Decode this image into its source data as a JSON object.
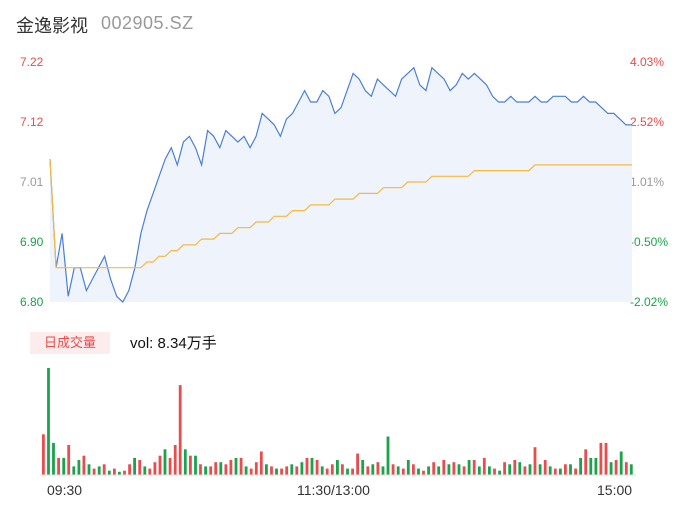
{
  "header": {
    "name": "金逸影视",
    "code": "002905.SZ"
  },
  "colors": {
    "price_line": "#4a7fd6",
    "avg_line": "#f5b942",
    "fill": "#eef3fc",
    "up": "#e84c4c",
    "down": "#1aa34a",
    "flat": "#999999"
  },
  "chart_data": [
    {
      "type": "line",
      "subject": "intraday price",
      "prev_close": 7.01,
      "y_ticks": [
        "7.22",
        "7.12",
        "7.01",
        "6.90",
        "6.80"
      ],
      "pct_ticks": [
        "4.03%",
        "2.52%",
        "1.01%",
        "-0.50%",
        "-2.02%"
      ],
      "ylim": [
        6.8,
        7.22
      ],
      "x_ticks": [
        "09:30",
        "11:30/13:00",
        "15:00"
      ],
      "series": [
        {
          "role": "price",
          "values": [
            7.05,
            6.86,
            6.92,
            6.81,
            6.86,
            6.86,
            6.82,
            6.84,
            6.86,
            6.88,
            6.84,
            6.81,
            6.8,
            6.82,
            6.86,
            6.92,
            6.96,
            6.99,
            7.02,
            7.05,
            7.07,
            7.04,
            7.08,
            7.09,
            7.07,
            7.04,
            7.1,
            7.09,
            7.07,
            7.1,
            7.09,
            7.08,
            7.09,
            7.07,
            7.09,
            7.13,
            7.12,
            7.11,
            7.09,
            7.12,
            7.13,
            7.15,
            7.17,
            7.15,
            7.15,
            7.17,
            7.16,
            7.13,
            7.14,
            7.17,
            7.2,
            7.19,
            7.17,
            7.16,
            7.19,
            7.18,
            7.17,
            7.16,
            7.19,
            7.2,
            7.21,
            7.18,
            7.17,
            7.21,
            7.2,
            7.19,
            7.17,
            7.18,
            7.2,
            7.19,
            7.2,
            7.19,
            7.18,
            7.16,
            7.15,
            7.15,
            7.16,
            7.15,
            7.15,
            7.15,
            7.16,
            7.15,
            7.15,
            7.16,
            7.16,
            7.16,
            7.15,
            7.15,
            7.16,
            7.15,
            7.15,
            7.14,
            7.13,
            7.13,
            7.12,
            7.11,
            7.11
          ]
        },
        {
          "role": "average",
          "values": [
            7.05,
            6.86,
            6.86,
            6.86,
            6.86,
            6.86,
            6.86,
            6.86,
            6.86,
            6.86,
            6.86,
            6.86,
            6.86,
            6.86,
            6.86,
            6.86,
            6.87,
            6.87,
            6.88,
            6.88,
            6.89,
            6.89,
            6.9,
            6.9,
            6.9,
            6.91,
            6.91,
            6.91,
            6.92,
            6.92,
            6.92,
            6.93,
            6.93,
            6.93,
            6.94,
            6.94,
            6.94,
            6.95,
            6.95,
            6.95,
            6.96,
            6.96,
            6.96,
            6.97,
            6.97,
            6.97,
            6.97,
            6.98,
            6.98,
            6.98,
            6.98,
            6.99,
            6.99,
            6.99,
            6.99,
            7.0,
            7.0,
            7.0,
            7.0,
            7.01,
            7.01,
            7.01,
            7.01,
            7.02,
            7.02,
            7.02,
            7.02,
            7.02,
            7.02,
            7.02,
            7.03,
            7.03,
            7.03,
            7.03,
            7.03,
            7.03,
            7.03,
            7.03,
            7.03,
            7.03,
            7.04,
            7.04,
            7.04,
            7.04,
            7.04,
            7.04,
            7.04,
            7.04,
            7.04,
            7.04,
            7.04,
            7.04,
            7.04,
            7.04,
            7.04,
            7.04,
            7.04
          ]
        }
      ]
    },
    {
      "type": "bar",
      "subject": "volume",
      "tab_label": "日成交量",
      "readout": "vol: 8.34万手",
      "values": [
        38,
        100,
        30,
        16,
        16,
        28,
        8,
        14,
        18,
        10,
        6,
        8,
        10,
        4,
        6,
        3,
        4,
        10,
        16,
        14,
        8,
        6,
        12,
        18,
        24,
        16,
        28,
        84,
        24,
        18,
        18,
        10,
        8,
        8,
        12,
        12,
        10,
        14,
        16,
        16,
        8,
        6,
        12,
        22,
        10,
        8,
        6,
        6,
        8,
        10,
        8,
        12,
        16,
        16,
        14,
        8,
        6,
        10,
        14,
        10,
        6,
        6,
        20,
        14,
        8,
        10,
        12,
        8,
        36,
        10,
        8,
        6,
        14,
        10,
        6,
        4,
        8,
        12,
        8,
        14,
        10,
        12,
        10,
        8,
        14,
        14,
        8,
        16,
        8,
        6,
        4,
        12,
        10,
        14,
        12,
        8,
        10,
        26,
        10,
        14,
        8,
        6,
        6,
        10,
        10,
        6,
        16,
        24,
        16,
        16,
        30,
        30,
        12,
        14,
        22,
        12,
        10
      ],
      "directions": [
        "u",
        "d",
        "d",
        "u",
        "d",
        "u",
        "d",
        "d",
        "u",
        "d",
        "u",
        "d",
        "u",
        "d",
        "u",
        "d",
        "u",
        "u",
        "d",
        "u",
        "d",
        "u",
        "u",
        "u",
        "d",
        "u",
        "u",
        "u",
        "d",
        "u",
        "d",
        "u",
        "d",
        "u",
        "u",
        "d",
        "u",
        "u",
        "d",
        "u",
        "d",
        "u",
        "u",
        "u",
        "d",
        "u",
        "d",
        "u",
        "u",
        "d",
        "u",
        "d",
        "u",
        "d",
        "u",
        "d",
        "u",
        "u",
        "d",
        "u",
        "d",
        "u",
        "u",
        "d",
        "u",
        "d",
        "u",
        "d",
        "d",
        "u",
        "d",
        "u",
        "d",
        "u",
        "d",
        "u",
        "d",
        "u",
        "d",
        "u",
        "d",
        "u",
        "d",
        "u",
        "d",
        "u",
        "d",
        "u",
        "d",
        "u",
        "d",
        "u",
        "d",
        "u",
        "d",
        "u",
        "d",
        "u",
        "d",
        "u",
        "d",
        "u",
        "d",
        "u",
        "d",
        "u",
        "d",
        "u",
        "d",
        "d",
        "u",
        "u",
        "d",
        "u",
        "d",
        "u",
        "d"
      ]
    }
  ]
}
